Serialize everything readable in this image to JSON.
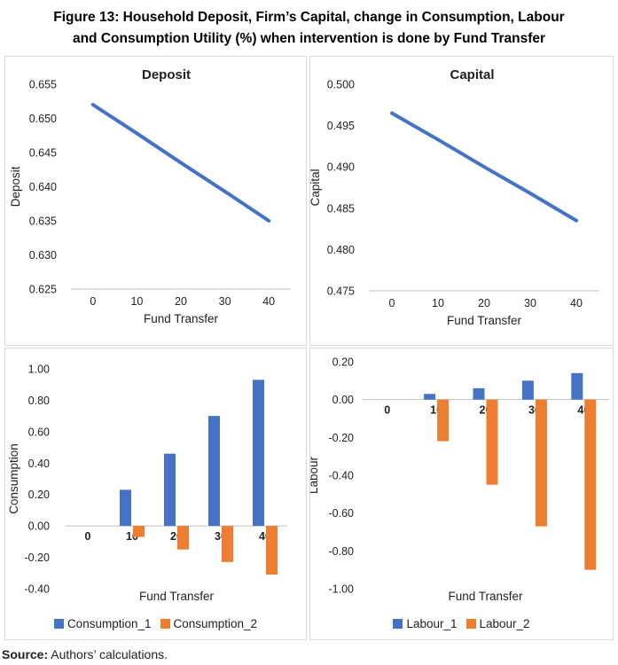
{
  "figure": {
    "title_line1": "Figure 13: Household Deposit, Firm’s Capital, change in Consumption, Labour",
    "title_line2": "and Consumption Utility (%) when intervention is done by Fund Transfer"
  },
  "source": {
    "label": "Source:",
    "text": "Authors’ calculations."
  },
  "colors": {
    "series_blue": "#4472C4",
    "series_orange": "#ED7D31",
    "axis_line": "#BFBFBF",
    "panel_border": "#D9D9D9",
    "text": "#1F1F1F"
  },
  "chart_data": [
    {
      "id": "deposit",
      "type": "line",
      "title": "Deposit",
      "xlabel": "Fund Transfer",
      "ylabel": "Deposit",
      "x": [
        0,
        10,
        20,
        30,
        40
      ],
      "values": [
        0.652,
        0.6478,
        0.6435,
        0.6393,
        0.635
      ],
      "ylim": [
        0.625,
        0.655
      ],
      "ytick_step": 0.005,
      "ydecimals": 3,
      "line_color": "#4472C4",
      "grid": false,
      "legend": false
    },
    {
      "id": "capital",
      "type": "line",
      "title": "Capital",
      "xlabel": "Fund Transfer",
      "ylabel": "Capital",
      "x": [
        0,
        10,
        20,
        30,
        40
      ],
      "values": [
        0.4965,
        0.4933,
        0.49,
        0.4868,
        0.4835
      ],
      "ylim": [
        0.475,
        0.5
      ],
      "ytick_step": 0.005,
      "ydecimals": 3,
      "line_color": "#4472C4",
      "grid": false,
      "legend": false
    },
    {
      "id": "consumption",
      "type": "bar",
      "title": "",
      "xlabel": "Fund Transfer",
      "ylabel": "Consumption",
      "categories": [
        "0",
        "10",
        "20",
        "30",
        "40"
      ],
      "series": [
        {
          "name": "Consumption_1",
          "color": "#4472C4",
          "values": [
            0,
            0.23,
            0.46,
            0.7,
            0.93
          ]
        },
        {
          "name": "Consumption_2",
          "color": "#ED7D31",
          "values": [
            0,
            -0.07,
            -0.15,
            -0.23,
            -0.31
          ]
        }
      ],
      "ylim": [
        -0.4,
        1.0
      ],
      "ytick_step": 0.2,
      "ydecimals": 2,
      "grid": false,
      "legend_position": "bottom"
    },
    {
      "id": "labour",
      "type": "bar",
      "title": "",
      "xlabel": "Fund Transfer",
      "ylabel": "Labour",
      "categories": [
        "0",
        "10",
        "20",
        "30",
        "40"
      ],
      "series": [
        {
          "name": "Labour_1",
          "color": "#4472C4",
          "values": [
            0,
            0.03,
            0.06,
            0.1,
            0.14
          ]
        },
        {
          "name": "Labour_2",
          "color": "#ED7D31",
          "values": [
            0,
            -0.22,
            -0.45,
            -0.67,
            -0.9
          ]
        }
      ],
      "ylim": [
        -1.0,
        0.2
      ],
      "ytick_step": 0.2,
      "ydecimals": 2,
      "grid": false,
      "legend_position": "bottom"
    }
  ]
}
